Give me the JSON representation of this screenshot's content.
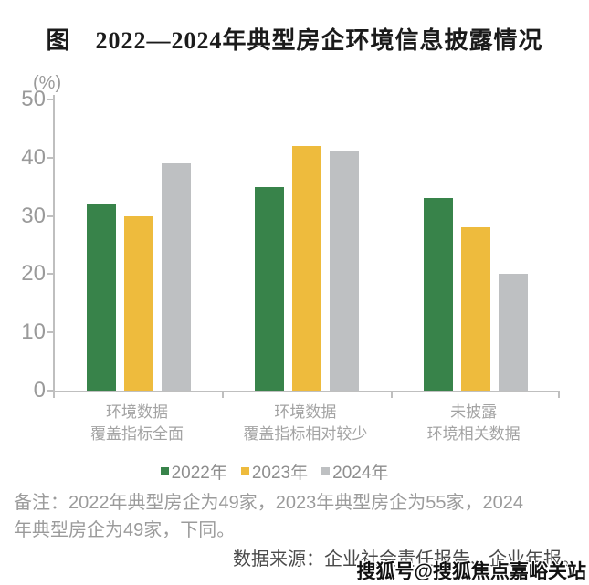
{
  "title": "图　2022—2024年典型房企环境信息披露情况",
  "unit_label": "(%)",
  "chart_data": {
    "type": "bar",
    "categories": [
      "环境数据\n覆盖指标全面",
      "环境数据\n覆盖指标相对较少",
      "未披露\n环境相关数据"
    ],
    "series": [
      {
        "name": "2022年",
        "color": "#38834A",
        "values": [
          32,
          35,
          33
        ]
      },
      {
        "name": "2023年",
        "color": "#EEBB3D",
        "values": [
          30,
          42,
          28
        ]
      },
      {
        "name": "2024年",
        "color": "#BEC0C2",
        "values": [
          39,
          41,
          20
        ]
      }
    ],
    "title": "图 2022—2024年典型房企环境信息披露情况",
    "xlabel": "",
    "ylabel": "(%)",
    "ylim": [
      0,
      50
    ],
    "yticks": [
      0,
      10,
      20,
      30,
      40,
      50
    ],
    "grid": false,
    "legend_position": "bottom"
  },
  "colors": {
    "axis": "#BFBFBF",
    "tick_label": "#9A9A9A",
    "title_text": "#1B1B1B"
  },
  "notes": {
    "line1": "备注：2022年典型房企为49家，2023年典型房企为55家，2024",
    "line2": "年典型房企为49家，下同。"
  },
  "source": "数据来源：企业社会责任报告、企业年报。",
  "watermark": "搜狐号@搜狐焦点嘉峪关站"
}
